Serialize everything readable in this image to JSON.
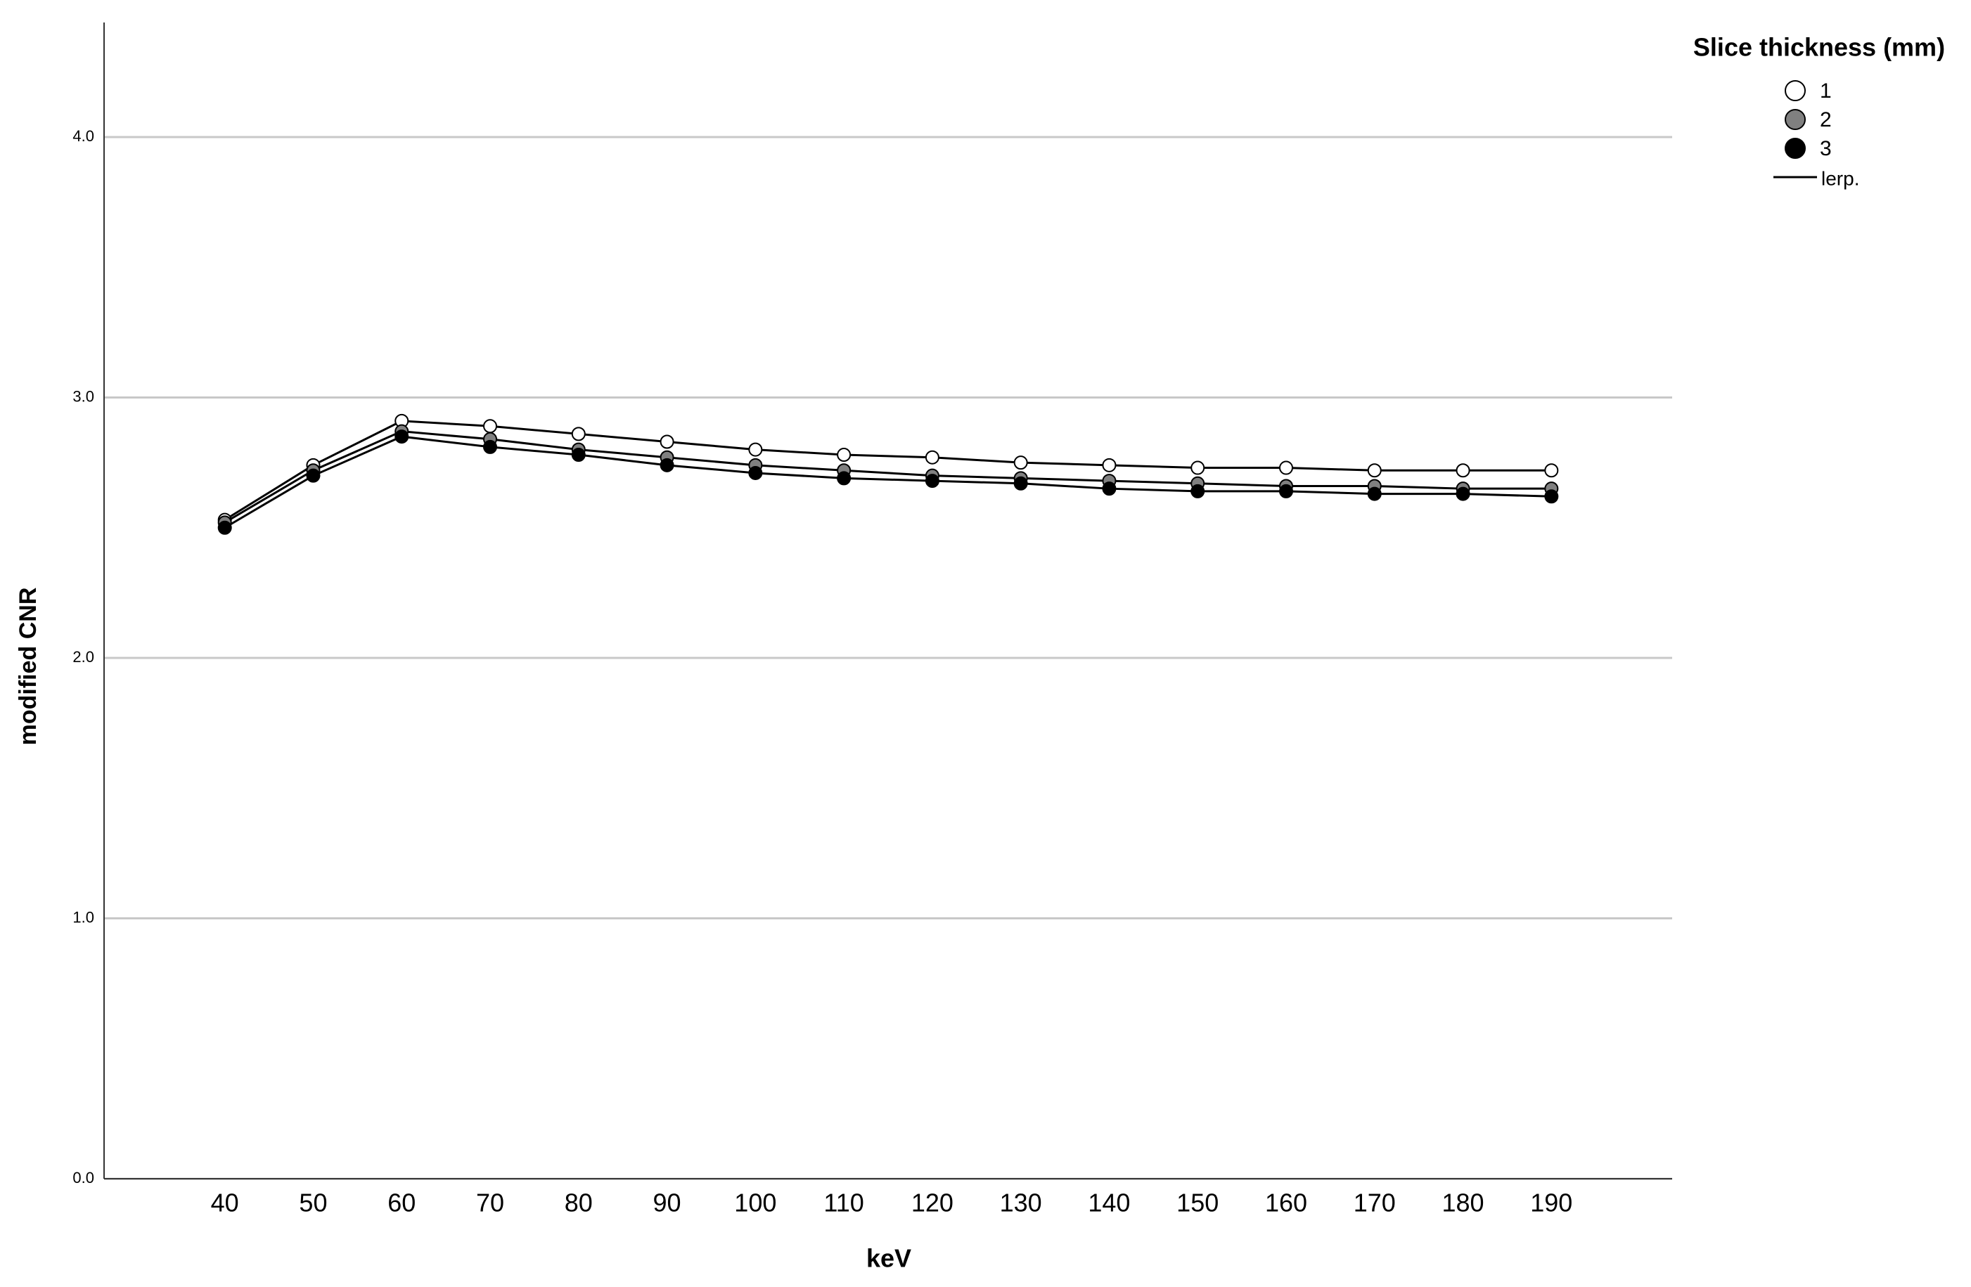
{
  "chart_data": {
    "type": "line",
    "x_label": "keV",
    "y_label": "modified CNR",
    "legend_title": "Slice thickness (mm)",
    "line_legend_label": "lerp.",
    "x": [
      40,
      50,
      60,
      70,
      80,
      90,
      100,
      110,
      120,
      130,
      140,
      150,
      160,
      170,
      180,
      190
    ],
    "series": [
      {
        "name": "1",
        "color": "#ffffff",
        "values": [
          2.53,
          2.74,
          2.91,
          2.89,
          2.86,
          2.83,
          2.8,
          2.78,
          2.77,
          2.75,
          2.74,
          2.73,
          2.73,
          2.72,
          2.72,
          2.72
        ]
      },
      {
        "name": "2",
        "color": "#808080",
        "values": [
          2.52,
          2.72,
          2.87,
          2.84,
          2.8,
          2.77,
          2.74,
          2.72,
          2.7,
          2.69,
          2.68,
          2.67,
          2.66,
          2.66,
          2.65,
          2.65
        ]
      },
      {
        "name": "3",
        "color": "#000000",
        "values": [
          2.5,
          2.7,
          2.85,
          2.81,
          2.78,
          2.74,
          2.71,
          2.69,
          2.68,
          2.67,
          2.65,
          2.64,
          2.64,
          2.63,
          2.63,
          2.62
        ]
      }
    ],
    "line_color": "#000000",
    "xlim": [
      26.35,
      203.65
    ],
    "xticks": [
      40,
      50,
      60,
      70,
      80,
      90,
      100,
      110,
      120,
      130,
      140,
      150,
      160,
      170,
      180,
      190
    ],
    "ylim": [
      0,
      4.44
    ],
    "yticks": [
      {
        "value": 0,
        "label": "0.0"
      },
      {
        "value": 1,
        "label": "1.0"
      },
      {
        "value": 2,
        "label": "2.0"
      },
      {
        "value": 3,
        "label": "3.0"
      },
      {
        "value": 4,
        "label": "4.0"
      }
    ],
    "grid": true
  }
}
